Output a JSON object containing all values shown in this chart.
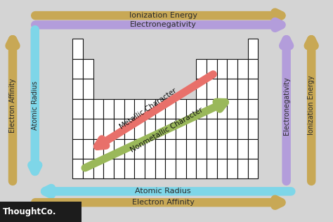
{
  "bg_color": "#d4d4d4",
  "grid_color": "#ffffff",
  "grid_border": "#111111",
  "arrow_gold": "#c8a855",
  "arrow_purple": "#b39ddb",
  "arrow_cyan": "#7ed6e8",
  "arrow_red": "#e8706a",
  "arrow_green": "#9ab85a",
  "label_fontsize": 8,
  "diag_fontsize": 7.5,
  "thoughtco_bg": "#1c1c1c",
  "thoughtco_text": "#ffffff",
  "top_arrow1_text": "Ionization Energy",
  "top_arrow2_text": "Electronegativity",
  "bot_arrow1_text": "Atomic Radius",
  "bot_arrow2_text": "Electron Affinity",
  "left_arrow1_text": "Electron Affinity",
  "left_arrow2_text": "Atomic Radius",
  "right_arrow1_text": "Electronegativity",
  "right_arrow2_text": "Ionization Energy",
  "diag1_text": "Metallic Character",
  "diag2_text": "Nonmetallic Character"
}
